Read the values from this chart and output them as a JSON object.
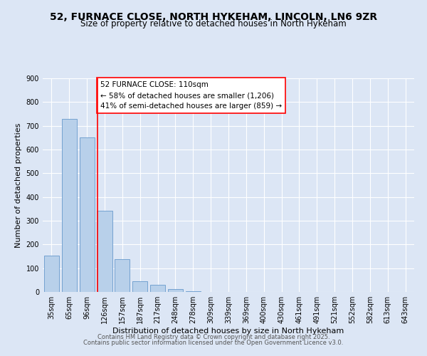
{
  "title1": "52, FURNACE CLOSE, NORTH HYKEHAM, LINCOLN, LN6 9ZR",
  "title2": "Size of property relative to detached houses in North Hykeham",
  "bar_labels": [
    "35sqm",
    "65sqm",
    "96sqm",
    "126sqm",
    "157sqm",
    "187sqm",
    "217sqm",
    "248sqm",
    "278sqm",
    "309sqm",
    "339sqm",
    "369sqm",
    "400sqm",
    "430sqm",
    "461sqm",
    "491sqm",
    "521sqm",
    "552sqm",
    "582sqm",
    "613sqm",
    "643sqm"
  ],
  "bar_values": [
    153,
    730,
    650,
    343,
    137,
    44,
    30,
    12,
    3,
    0,
    0,
    0,
    0,
    0,
    0,
    0,
    0,
    0,
    0,
    0,
    0
  ],
  "bar_color": "#b8d0ea",
  "bar_edge_color": "#6699cc",
  "vline_x": 2.58,
  "vline_color": "red",
  "annotation_text": "52 FURNACE CLOSE: 110sqm\n← 58% of detached houses are smaller (1,206)\n41% of semi-detached houses are larger (859) →",
  "xlabel": "Distribution of detached houses by size in North Hykeham",
  "ylabel": "Number of detached properties",
  "ylim": [
    0,
    900
  ],
  "yticks": [
    0,
    100,
    200,
    300,
    400,
    500,
    600,
    700,
    800,
    900
  ],
  "footer1": "Contains HM Land Registry data © Crown copyright and database right 2025.",
  "footer2": "Contains public sector information licensed under the Open Government Licence v3.0.",
  "background_color": "#dce6f5",
  "plot_bg_color": "#dce6f5",
  "grid_color": "#ffffff",
  "title1_fontsize": 10,
  "title2_fontsize": 8.5,
  "axis_label_fontsize": 8,
  "tick_fontsize": 7,
  "annotation_fontsize": 7.5,
  "footer_fontsize": 6
}
